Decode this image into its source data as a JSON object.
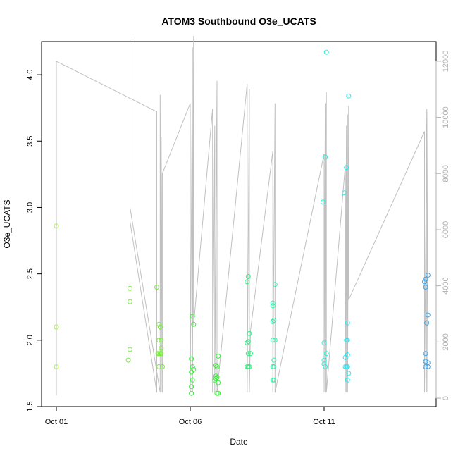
{
  "chart_data": {
    "type": "scatter",
    "title": "ATOM3 Southbound O3e_UCATS",
    "xlabel": "Date",
    "ylabel": "O3e_UCATS",
    "x_axis": {
      "type": "date",
      "range": [
        "2017-10-01",
        "2017-10-15"
      ],
      "ticks": [
        {
          "value": "2017-10-01",
          "label": "Oct 01"
        },
        {
          "value": "2017-10-06",
          "label": "Oct 06"
        },
        {
          "value": "2017-10-11",
          "label": "Oct 11"
        }
      ]
    },
    "y_axis_left": {
      "range": [
        1.5,
        4.25
      ],
      "ticks": [
        1.5,
        2.0,
        2.5,
        3.0,
        3.5,
        4.0
      ],
      "tick_labels": [
        "1.5",
        "2.0",
        "2.5",
        "3.0",
        "3.5",
        "4.0"
      ]
    },
    "y_axis_right": {
      "range": [
        -300,
        12700
      ],
      "ticks": [
        0,
        2000,
        4000,
        6000,
        8000,
        10000,
        12000
      ],
      "tick_labels": [
        "0",
        "2000",
        "4000",
        "6000",
        "8000",
        "10000",
        "12000"
      ],
      "color": "#b0b0b0"
    },
    "grid": false,
    "legend": "none",
    "colors": {
      "altitude_line": "#c0c0c0",
      "points_palette": [
        "#b8f048",
        "#48f048",
        "#30f090",
        "#30f0c8",
        "#30e0f0",
        "#40b0f0"
      ]
    },
    "series": [
      {
        "color": "#a8ec4c",
        "points": [
          [
            "2017-10-01T00:00",
            2.86
          ],
          [
            "2017-10-01T00:00",
            2.1
          ],
          [
            "2017-10-01T00:00",
            1.8
          ]
        ]
      },
      {
        "color": "#78ea40",
        "points": [
          [
            "2017-10-03T18:00",
            2.39
          ],
          [
            "2017-10-03T18:00",
            2.29
          ],
          [
            "2017-10-03T18:00",
            1.93
          ],
          [
            "2017-10-03T16:30",
            1.85
          ],
          [
            "2017-10-04T18:00",
            2.4
          ],
          [
            "2017-10-04T20:00",
            2.12
          ],
          [
            "2017-10-04T21:00",
            2.1
          ],
          [
            "2017-10-04T20:00",
            2.0
          ],
          [
            "2017-10-04T22:00",
            2.0
          ],
          [
            "2017-10-04T22:00",
            1.94
          ],
          [
            "2017-10-04T19:00",
            1.9
          ],
          [
            "2017-10-04T20:00",
            1.9
          ],
          [
            "2017-10-04T21:00",
            1.9
          ],
          [
            "2017-10-04T22:00",
            1.9
          ],
          [
            "2017-10-04T20:00",
            1.8
          ],
          [
            "2017-10-04T23:00",
            1.8
          ],
          [
            "2017-10-04T21:00",
            2.1
          ]
        ]
      },
      {
        "color": "#3cee3c",
        "points": [
          [
            "2017-10-06T02:00",
            2.18
          ],
          [
            "2017-10-06T03:00",
            2.12
          ],
          [
            "2017-10-06T01:00",
            1.86
          ],
          [
            "2017-10-06T02:00",
            1.8
          ],
          [
            "2017-10-06T03:00",
            1.78
          ],
          [
            "2017-10-06T01:00",
            1.76
          ],
          [
            "2017-10-06T02:00",
            1.7
          ],
          [
            "2017-10-06T01:00",
            1.65
          ],
          [
            "2017-10-06T01:00",
            1.6
          ],
          [
            "2017-10-06T23:00",
            1.81
          ],
          [
            "2017-10-07T01:00",
            1.88
          ],
          [
            "2017-10-07T00:00",
            1.8
          ],
          [
            "2017-10-06T23:00",
            1.73
          ],
          [
            "2017-10-06T22:00",
            1.7
          ],
          [
            "2017-10-07T00:00",
            1.72
          ],
          [
            "2017-10-07T01:00",
            1.68
          ],
          [
            "2017-10-07T00:00",
            1.6
          ],
          [
            "2017-10-07T01:00",
            1.6
          ],
          [
            "2017-10-06T23:00",
            1.71
          ]
        ]
      },
      {
        "color": "#30f080",
        "points": [
          [
            "2017-10-08T04:00",
            2.48
          ],
          [
            "2017-10-08T03:00",
            2.44
          ],
          [
            "2017-10-08T05:00",
            2.05
          ],
          [
            "2017-10-08T04:00",
            1.99
          ],
          [
            "2017-10-08T03:00",
            1.98
          ],
          [
            "2017-10-08T06:00",
            1.9
          ],
          [
            "2017-10-08T04:00",
            1.9
          ],
          [
            "2017-10-08T03:00",
            1.8
          ],
          [
            "2017-10-08T04:00",
            1.8
          ],
          [
            "2017-10-08T05:00",
            1.8
          ]
        ]
      },
      {
        "color": "#30f0a8",
        "points": [
          [
            "2017-10-09T04:00",
            2.42
          ],
          [
            "2017-10-09T02:00",
            2.28
          ],
          [
            "2017-10-09T02:00",
            2.26
          ],
          [
            "2017-10-09T03:00",
            2.15
          ],
          [
            "2017-10-09T02:00",
            2.14
          ],
          [
            "2017-10-09T02:00",
            2.0
          ],
          [
            "2017-10-09T04:00",
            2.0
          ],
          [
            "2017-10-09T03:00",
            1.85
          ],
          [
            "2017-10-09T02:00",
            1.8
          ],
          [
            "2017-10-09T03:00",
            1.8
          ],
          [
            "2017-10-09T02:00",
            1.7
          ],
          [
            "2017-10-09T03:00",
            1.7
          ]
        ]
      },
      {
        "color": "#30eed8",
        "points": [
          [
            "2017-10-11T02:00",
            4.17
          ],
          [
            "2017-10-11T01:00",
            3.38
          ],
          [
            "2017-10-10T23:00",
            3.04
          ],
          [
            "2017-10-11T00:00",
            1.98
          ],
          [
            "2017-10-11T02:00",
            1.9
          ],
          [
            "2017-10-11T00:00",
            1.85
          ],
          [
            "2017-10-11T00:00",
            1.82
          ],
          [
            "2017-10-11T01:00",
            1.8
          ]
        ]
      },
      {
        "color": "#30e6f0",
        "points": [
          [
            "2017-10-11T22:00",
            3.84
          ],
          [
            "2017-10-11T20:00",
            3.3
          ],
          [
            "2017-10-11T18:00",
            3.11
          ],
          [
            "2017-10-11T21:00",
            2.13
          ],
          [
            "2017-10-11T20:00",
            2.0
          ],
          [
            "2017-10-11T21:00",
            2.0
          ],
          [
            "2017-10-11T21:00",
            1.89
          ],
          [
            "2017-10-11T19:00",
            1.87
          ],
          [
            "2017-10-11T19:00",
            1.8
          ],
          [
            "2017-10-11T20:00",
            1.8
          ],
          [
            "2017-10-11T21:00",
            1.8
          ],
          [
            "2017-10-11T22:00",
            1.75
          ],
          [
            "2017-10-11T21:00",
            1.7
          ]
        ]
      },
      {
        "color": "#3aa8ee",
        "points": [
          [
            "2017-10-14T21:00",
            2.49
          ],
          [
            "2017-10-14T19:00",
            2.46
          ],
          [
            "2017-10-14T18:00",
            2.44
          ],
          [
            "2017-10-14T19:00",
            2.4
          ],
          [
            "2017-10-14T21:00",
            2.19
          ],
          [
            "2017-10-14T20:00",
            2.13
          ],
          [
            "2017-10-14T19:00",
            1.9
          ],
          [
            "2017-10-14T19:00",
            1.84
          ],
          [
            "2017-10-14T21:00",
            1.83
          ],
          [
            "2017-10-14T19:00",
            1.8
          ],
          [
            "2017-10-14T21:00",
            1.8
          ]
        ]
      }
    ],
    "altitude_series": {
      "axis": "right",
      "color": "#c0c0c0",
      "points": [
        [
          "2017-10-01T00:00",
          100
        ],
        [
          "2017-10-01T00:00",
          12000
        ],
        [
          "2017-10-04T18:00",
          10200
        ],
        [
          "2017-10-04T18:00",
          200
        ],
        [
          "2017-10-03T18:00",
          6300
        ],
        [
          "2017-10-03T18:00",
          12800
        ],
        [
          "2017-10-03T18:00",
          6800
        ],
        [
          "2017-10-04T21:00",
          200
        ],
        [
          "2017-10-04T21:00",
          10800
        ],
        [
          "2017-10-04T22:00",
          200
        ],
        [
          "2017-10-04T22:00",
          9300
        ],
        [
          "2017-10-04T23:00",
          200
        ],
        [
          "2017-10-04T23:00",
          8000
        ],
        [
          "2017-10-06T00:00",
          10500
        ],
        [
          "2017-10-06T00:00",
          200
        ],
        [
          "2017-10-06T02:00",
          12500
        ],
        [
          "2017-10-06T02:00",
          200
        ],
        [
          "2017-10-06T03:00",
          12900
        ],
        [
          "2017-10-06T03:00",
          2600
        ],
        [
          "2017-10-06T20:00",
          10300
        ],
        [
          "2017-10-06T20:00",
          200
        ],
        [
          "2017-10-06T22:00",
          9700
        ],
        [
          "2017-10-06T22:00",
          200
        ],
        [
          "2017-10-07T00:00",
          11300
        ],
        [
          "2017-10-07T00:00",
          200
        ],
        [
          "2017-10-08T03:00",
          11200
        ],
        [
          "2017-10-08T03:00",
          200
        ],
        [
          "2017-10-08T05:00",
          11000
        ],
        [
          "2017-10-08T05:00",
          200
        ],
        [
          "2017-10-08T06:00",
          2400
        ],
        [
          "2017-10-09T02:00",
          8800
        ],
        [
          "2017-10-09T02:00",
          200
        ],
        [
          "2017-10-09T04:00",
          10500
        ],
        [
          "2017-10-09T04:00",
          200
        ],
        [
          "2017-10-11T00:00",
          8700
        ],
        [
          "2017-10-11T00:00",
          200
        ],
        [
          "2017-10-11T01:00",
          10500
        ],
        [
          "2017-10-11T01:00",
          200
        ],
        [
          "2017-10-11T02:00",
          10900
        ],
        [
          "2017-10-11T02:00",
          200
        ],
        [
          "2017-10-11T19:00",
          8300
        ],
        [
          "2017-10-11T19:00",
          200
        ],
        [
          "2017-10-11T20:00",
          9700
        ],
        [
          "2017-10-11T20:00",
          200
        ],
        [
          "2017-10-11T21:00",
          10100
        ],
        [
          "2017-10-11T21:00",
          200
        ],
        [
          "2017-10-11T22:00",
          10400
        ],
        [
          "2017-10-11T22:00",
          3500
        ],
        [
          "2017-10-14T18:00",
          9500
        ],
        [
          "2017-10-14T18:00",
          200
        ],
        [
          "2017-10-14T20:00",
          10300
        ],
        [
          "2017-10-14T20:00",
          200
        ],
        [
          "2017-10-14T21:00",
          10200
        ],
        [
          "2017-10-14T21:00",
          200
        ]
      ]
    }
  }
}
